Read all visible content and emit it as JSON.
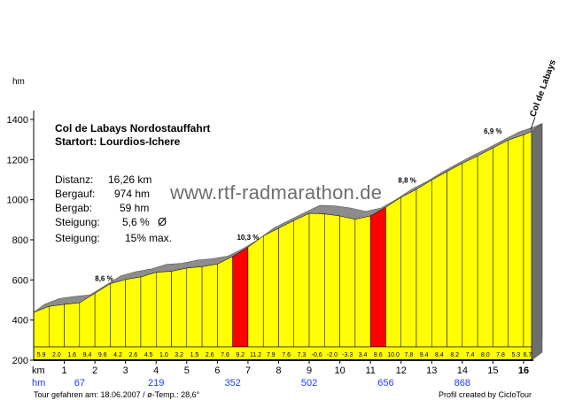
{
  "chart_data": {
    "type": "area",
    "title": "Col de Labays  Nordostauffahrt",
    "subtitle": "Startort: Lourdios-Ichere",
    "ylabel": "hm",
    "xlabel": "km",
    "ylim": [
      200,
      1400
    ],
    "xlim": [
      0,
      16.26
    ],
    "yticks": [
      200,
      400,
      600,
      800,
      1000,
      1200,
      1400
    ],
    "km_ticks": [
      1,
      2,
      3,
      4,
      5,
      6,
      7,
      8,
      9,
      10,
      11,
      12,
      13,
      14,
      15,
      16
    ],
    "hm_ticks": [
      {
        "km": 1.5,
        "label": "67"
      },
      {
        "km": 4,
        "label": "219"
      },
      {
        "km": 6.5,
        "label": "352"
      },
      {
        "km": 9,
        "label": "502"
      },
      {
        "km": 11.5,
        "label": "656"
      },
      {
        "km": 14,
        "label": "868"
      }
    ],
    "segment_km": 0.5,
    "gradients": [
      "5.9",
      "2.0",
      "1.6",
      "9.4",
      "9.6",
      "4.2",
      "2.6",
      "4.5",
      "1.0",
      "3.2",
      "1.5",
      "2.6",
      "7.6",
      "9.2",
      "11.2",
      "7.9",
      "7.6",
      "7.3",
      "-0.6",
      "-2.0",
      "-3.3",
      "3.4",
      "8.6",
      "10.0",
      "7.8",
      "9.4",
      "8.4",
      "8.2",
      "7.4",
      "8.0",
      "7.8",
      "5.3",
      "6.7"
    ],
    "profile": [
      {
        "km": 0,
        "alt": 438
      },
      {
        "km": 0.5,
        "alt": 468
      },
      {
        "km": 1,
        "alt": 478
      },
      {
        "km": 1.5,
        "alt": 486
      },
      {
        "km": 2,
        "alt": 533
      },
      {
        "km": 2.5,
        "alt": 581
      },
      {
        "km": 3,
        "alt": 602
      },
      {
        "km": 3.5,
        "alt": 615
      },
      {
        "km": 4,
        "alt": 638
      },
      {
        "km": 4.5,
        "alt": 643
      },
      {
        "km": 5,
        "alt": 659
      },
      {
        "km": 5.5,
        "alt": 666
      },
      {
        "km": 6,
        "alt": 679
      },
      {
        "km": 6.5,
        "alt": 717
      },
      {
        "km": 7,
        "alt": 763
      },
      {
        "km": 7.5,
        "alt": 819
      },
      {
        "km": 8,
        "alt": 858
      },
      {
        "km": 8.5,
        "alt": 896
      },
      {
        "km": 9,
        "alt": 932
      },
      {
        "km": 9.5,
        "alt": 929
      },
      {
        "km": 10,
        "alt": 919
      },
      {
        "km": 10.5,
        "alt": 902
      },
      {
        "km": 11,
        "alt": 919
      },
      {
        "km": 11.5,
        "alt": 962
      },
      {
        "km": 12,
        "alt": 1012
      },
      {
        "km": 12.5,
        "alt": 1051
      },
      {
        "km": 13,
        "alt": 1098
      },
      {
        "km": 13.5,
        "alt": 1140
      },
      {
        "km": 14,
        "alt": 1181
      },
      {
        "km": 14.5,
        "alt": 1218
      },
      {
        "km": 15,
        "alt": 1258
      },
      {
        "km": 15.5,
        "alt": 1297
      },
      {
        "km": 16,
        "alt": 1323
      },
      {
        "km": 16.26,
        "alt": 1340
      }
    ],
    "max_gradient_labels": [
      {
        "km": 2.3,
        "alt": 595,
        "label": "8,6 %"
      },
      {
        "km": 7.0,
        "alt": 800,
        "label": "10,3 %"
      },
      {
        "km": 12.2,
        "alt": 1085,
        "label": "8,8 %"
      },
      {
        "km": 15.0,
        "alt": 1330,
        "label": "6,9 %"
      }
    ],
    "highlight_segments": [
      [
        6.5,
        7.0
      ],
      [
        11.0,
        11.5
      ]
    ],
    "summit_label": "Col de Labays",
    "colors": {
      "fill": "#ffff00",
      "steep": "#ff0000",
      "relief": "#8c8c8c",
      "axis": "#000000",
      "hm_text": "#1e3cff"
    }
  },
  "info": {
    "distanz_label": "Distanz:",
    "distanz_value": "16,26 km",
    "bergauf_label": "Bergauf:",
    "bergauf_value": "974 hm",
    "bergab_label": "Bergab:",
    "bergab_value": "59 hm",
    "steigung_label": "Steigung:",
    "steigung_value": "5,6 %",
    "steigung_symbol": "Ø",
    "steigung_max_label": "Steigung:",
    "steigung_max_value": "15%",
    "steigung_max_suffix": "max."
  },
  "watermark": "www.rtf-radmarathon.de",
  "footer": {
    "left": "Tour gefahren am: 18.06.2007  /  ø-Temp.: 28,6°",
    "right": "Profil created by CicloTour"
  }
}
